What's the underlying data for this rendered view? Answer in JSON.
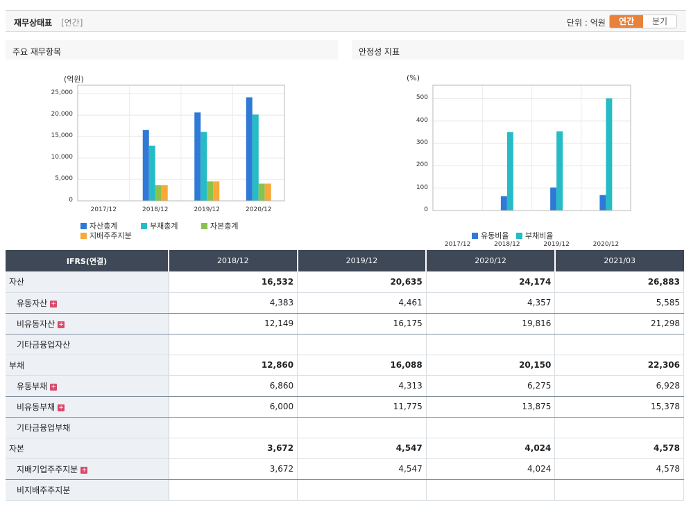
{
  "header": {
    "title": "재무상태표",
    "subtitle": "[연간]",
    "unit_label": "단위 : 억원",
    "toggle": [
      {
        "label": "연간",
        "active": true
      },
      {
        "label": "분기",
        "active": false
      }
    ]
  },
  "left_panel": {
    "title": "주요 재무항목"
  },
  "right_panel": {
    "title": "안정성 지표"
  },
  "chart_data": [
    {
      "type": "bar",
      "title": "주요 재무항목",
      "unit": "(억원)",
      "categories": [
        "2017/12",
        "2018/12",
        "2019/12",
        "2020/12"
      ],
      "ylim": [
        0,
        27000
      ],
      "yticks": [
        0,
        5000,
        10000,
        15000,
        20000,
        25000
      ],
      "ytick_labels": [
        "0",
        "5,000",
        "10,000",
        "15,000",
        "20,000",
        "25,000"
      ],
      "series": [
        {
          "name": "자산총계",
          "color": "#2f7ad6",
          "values": [
            0,
            16532,
            20635,
            24174
          ]
        },
        {
          "name": "부채총계",
          "color": "#26bcc6",
          "values": [
            0,
            12860,
            16088,
            20150
          ]
        },
        {
          "name": "자본총계",
          "color": "#8cc14c",
          "values": [
            0,
            3672,
            4547,
            4024
          ]
        },
        {
          "name": "지배주주지분",
          "color": "#f8a93a",
          "values": [
            0,
            3672,
            4547,
            4024
          ]
        }
      ]
    },
    {
      "type": "bar",
      "title": "안정성 지표",
      "unit": "(%)",
      "categories": [
        "2017/12",
        "2018/12",
        "2019/12",
        "2020/12"
      ],
      "ylim": [
        0,
        560
      ],
      "yticks": [
        0,
        100,
        200,
        300,
        400,
        500
      ],
      "ytick_labels": [
        "0",
        "100",
        "200",
        "300",
        "400",
        "500"
      ],
      "series": [
        {
          "name": "유동비율",
          "color": "#2f7ad6",
          "values": [
            0,
            64,
            103,
            69
          ]
        },
        {
          "name": "부채비율",
          "color": "#26bcc6",
          "values": [
            0,
            350,
            354,
            501
          ]
        }
      ]
    }
  ],
  "table": {
    "headers": [
      "IFRS(연결)",
      "2018/12",
      "2019/12",
      "2020/12",
      "2021/03"
    ],
    "rows": [
      {
        "label": "자산",
        "values": [
          "16,532",
          "20,635",
          "24,174",
          "26,883"
        ]
      },
      {
        "label": "유동자산",
        "values": [
          "4,383",
          "4,461",
          "4,357",
          "5,585"
        ]
      },
      {
        "label": "비유동자산",
        "values": [
          "12,149",
          "16,175",
          "19,816",
          "21,298"
        ]
      },
      {
        "label": "기타금융업자산",
        "values": [
          "",
          "",
          "",
          ""
        ]
      },
      {
        "label": "부채",
        "values": [
          "12,860",
          "16,088",
          "20,150",
          "22,306"
        ]
      },
      {
        "label": "유동부채",
        "values": [
          "6,860",
          "4,313",
          "6,275",
          "6,928"
        ]
      },
      {
        "label": "비유동부채",
        "values": [
          "6,000",
          "11,775",
          "13,875",
          "15,378"
        ]
      },
      {
        "label": "기타금융업부채",
        "values": [
          "",
          "",
          "",
          ""
        ]
      },
      {
        "label": "자본",
        "values": [
          "3,672",
          "4,547",
          "4,024",
          "4,578"
        ]
      },
      {
        "label": "지배기업주주지분",
        "values": [
          "3,672",
          "4,547",
          "4,024",
          "4,578"
        ]
      },
      {
        "label": "비지배주주지분",
        "values": [
          "",
          "",
          "",
          ""
        ]
      }
    ],
    "expand_icon": "+"
  }
}
